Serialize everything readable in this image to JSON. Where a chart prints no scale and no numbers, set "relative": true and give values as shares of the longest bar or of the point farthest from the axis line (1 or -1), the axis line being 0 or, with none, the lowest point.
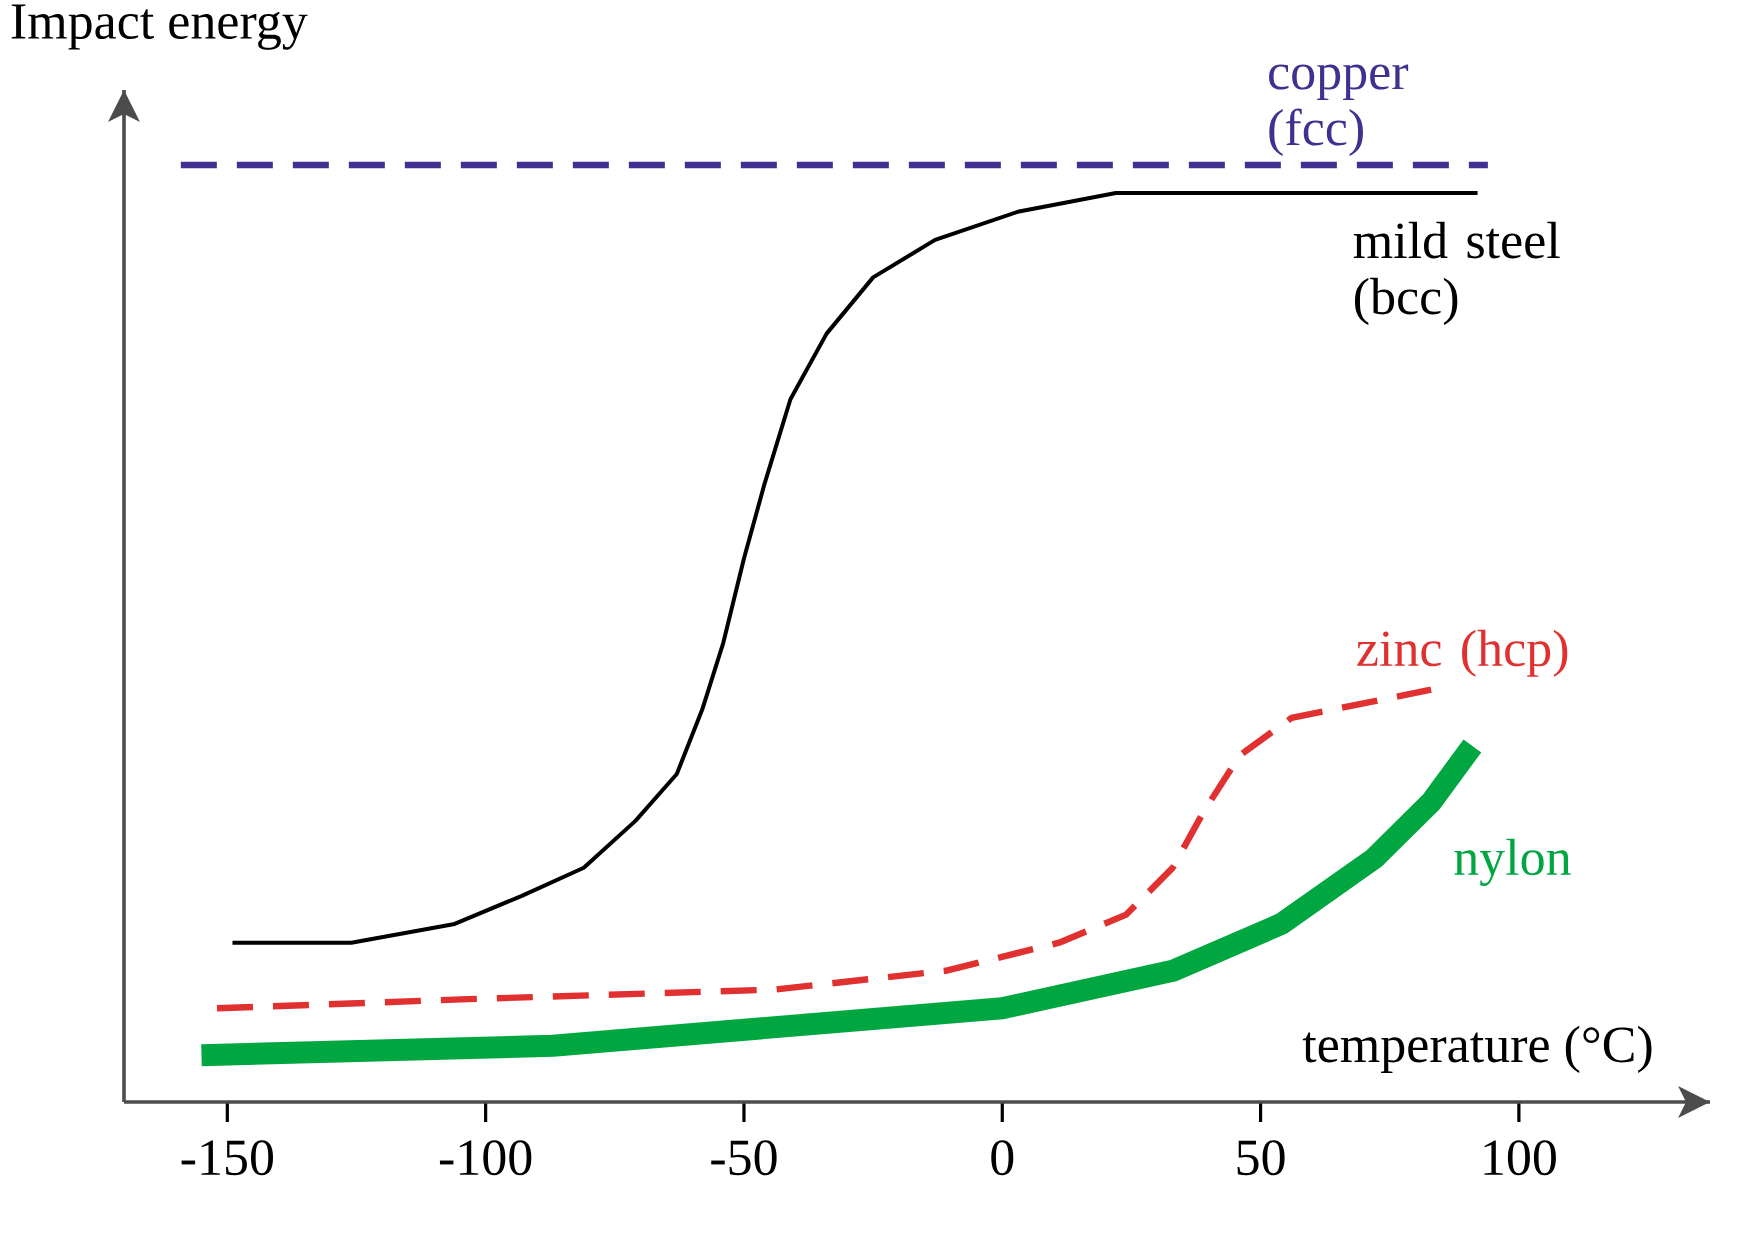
{
  "chart_data": {
    "type": "line",
    "ylabel": "Impact energy",
    "xlabel": "temperature (°C)",
    "relative": true,
    "xlim": [
      -170,
      137
    ],
    "xticks": [
      -150,
      -100,
      -50,
      0,
      50,
      100
    ],
    "grid": false,
    "legend": false,
    "marker": "none",
    "series": [
      {
        "name": "copper (fcc)",
        "color": "#40308f",
        "line_style": "dashed",
        "x": [
          -159,
          -100,
          -50,
          0,
          50,
          94
        ],
        "values": [
          1.0,
          1.0,
          1.0,
          1.0,
          1.0,
          1.0
        ]
      },
      {
        "name": "mild steel (bcc)",
        "color": "#000000",
        "line_style": "solid",
        "x": [
          -149,
          -126,
          -106,
          -93,
          -81,
          -71,
          -63,
          -58,
          -54,
          -50,
          -46,
          -41,
          -34,
          -25,
          -13,
          3,
          22,
          46,
          92
        ],
        "values": [
          0.17,
          0.17,
          0.19,
          0.22,
          0.25,
          0.3,
          0.35,
          0.42,
          0.49,
          0.58,
          0.66,
          0.75,
          0.82,
          0.88,
          0.92,
          0.95,
          0.97,
          0.97,
          0.97
        ]
      },
      {
        "name": "zinc (hcp)",
        "color": "#e03030",
        "line_style": "dashed",
        "x": [
          -152,
          -102,
          -44,
          -11,
          11,
          24,
          33,
          39,
          46,
          56,
          65,
          83
        ],
        "values": [
          0.1,
          0.11,
          0.12,
          0.14,
          0.17,
          0.2,
          0.25,
          0.31,
          0.37,
          0.41,
          0.42,
          0.44
        ]
      },
      {
        "name": "nylon",
        "color": "#00a640",
        "line_style": "solid",
        "x": [
          -155,
          -87,
          0,
          33,
          54,
          72,
          83,
          91
        ],
        "values": [
          0.05,
          0.06,
          0.1,
          0.14,
          0.19,
          0.26,
          0.32,
          0.38
        ]
      }
    ]
  }
}
